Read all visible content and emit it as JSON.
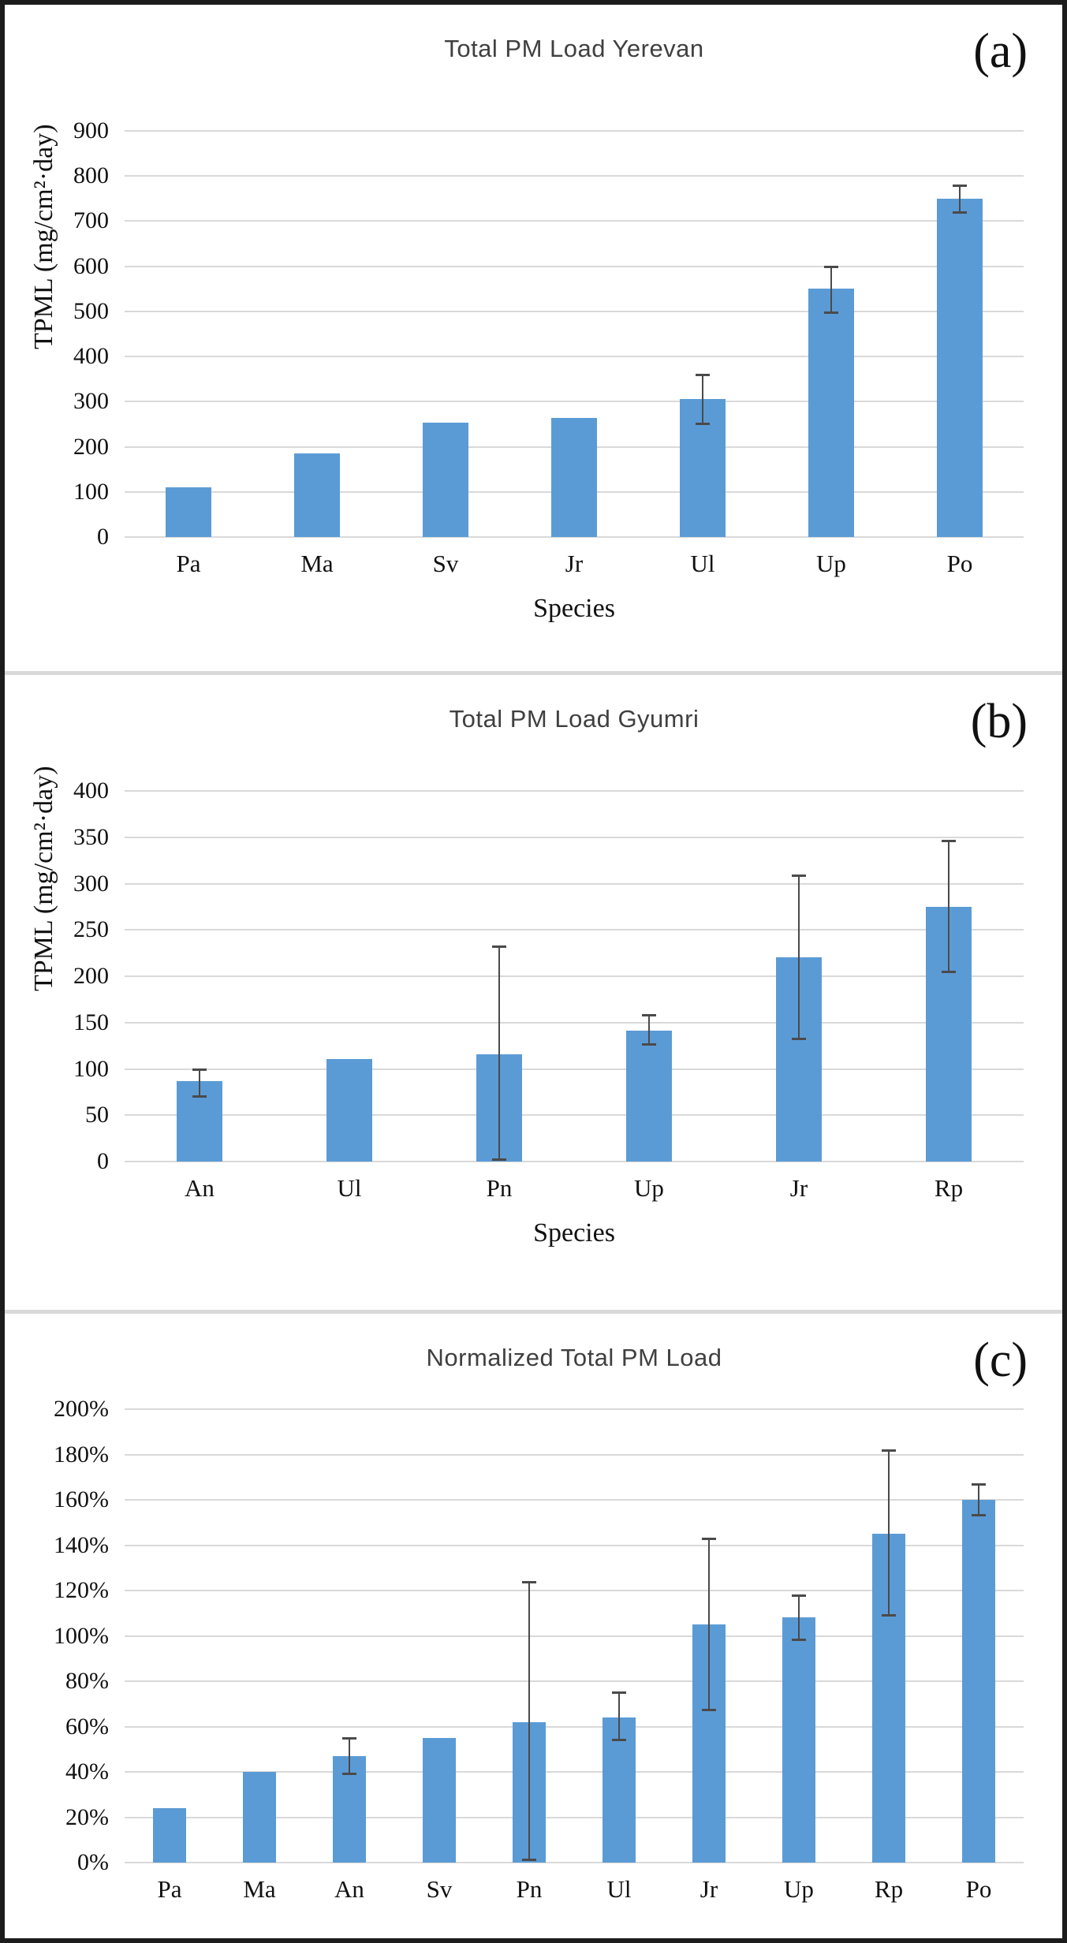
{
  "chart_data": [
    {
      "type": "bar",
      "panel_label": "(a)",
      "title": "Total PM Load Yerevan",
      "ylabel": "TPML (mg/cm²·day)",
      "xlabel": "Species",
      "ylim": [
        0,
        900
      ],
      "ystep": 100,
      "tick_suffix": "",
      "grid": true,
      "legend": "none",
      "bar_color": "#5b9bd5",
      "categories": [
        "Pa",
        "Ma",
        "Sv",
        "Jr",
        "Ul",
        "Up",
        "Po"
      ],
      "values": [
        110,
        185,
        253,
        264,
        305,
        550,
        750
      ],
      "error_ranges": [
        null,
        null,
        null,
        null,
        [
          250,
          360
        ],
        [
          497,
          600
        ],
        [
          719,
          780
        ]
      ]
    },
    {
      "type": "bar",
      "panel_label": "(b)",
      "title": "Total PM Load Gyumri",
      "ylabel": "TPML (mg/cm²·day)",
      "xlabel": "Species",
      "ylim": [
        0,
        400
      ],
      "ystep": 50,
      "tick_suffix": "",
      "grid": true,
      "legend": "none",
      "bar_color": "#5b9bd5",
      "categories": [
        "An",
        "Ul",
        "Pn",
        "Up",
        "Jr",
        "Rp"
      ],
      "values": [
        87,
        111,
        116,
        141,
        220,
        275
      ],
      "error_ranges": [
        [
          70,
          100
        ],
        null,
        [
          2,
          232
        ],
        [
          126,
          158
        ],
        [
          132,
          309
        ],
        [
          204,
          346
        ]
      ]
    },
    {
      "type": "bar",
      "panel_label": "(c)",
      "title": "Normalized Total PM Load",
      "ylabel": "",
      "xlabel": "",
      "ylim": [
        0,
        200
      ],
      "ystep": 20,
      "tick_suffix": "%",
      "grid": true,
      "legend": "none",
      "bar_color": "#5b9bd5",
      "categories": [
        "Pa",
        "Ma",
        "An",
        "Sv",
        "Pn",
        "Ul",
        "Jr",
        "Up",
        "Rp",
        "Po"
      ],
      "values": [
        24,
        40,
        47,
        55,
        62,
        64,
        105,
        108,
        145,
        160
      ],
      "error_ranges": [
        null,
        null,
        [
          39,
          55
        ],
        null,
        [
          1,
          124
        ],
        [
          54,
          75
        ],
        [
          67,
          143
        ],
        [
          98,
          118
        ],
        [
          109,
          182
        ],
        [
          153,
          167
        ]
      ]
    }
  ],
  "colors": {
    "bar": "#5b9bd5",
    "error_bar": "#4a4a4a",
    "gridline": "#d9d9d9",
    "title_text": "#404040",
    "tick_text": "#111111"
  }
}
